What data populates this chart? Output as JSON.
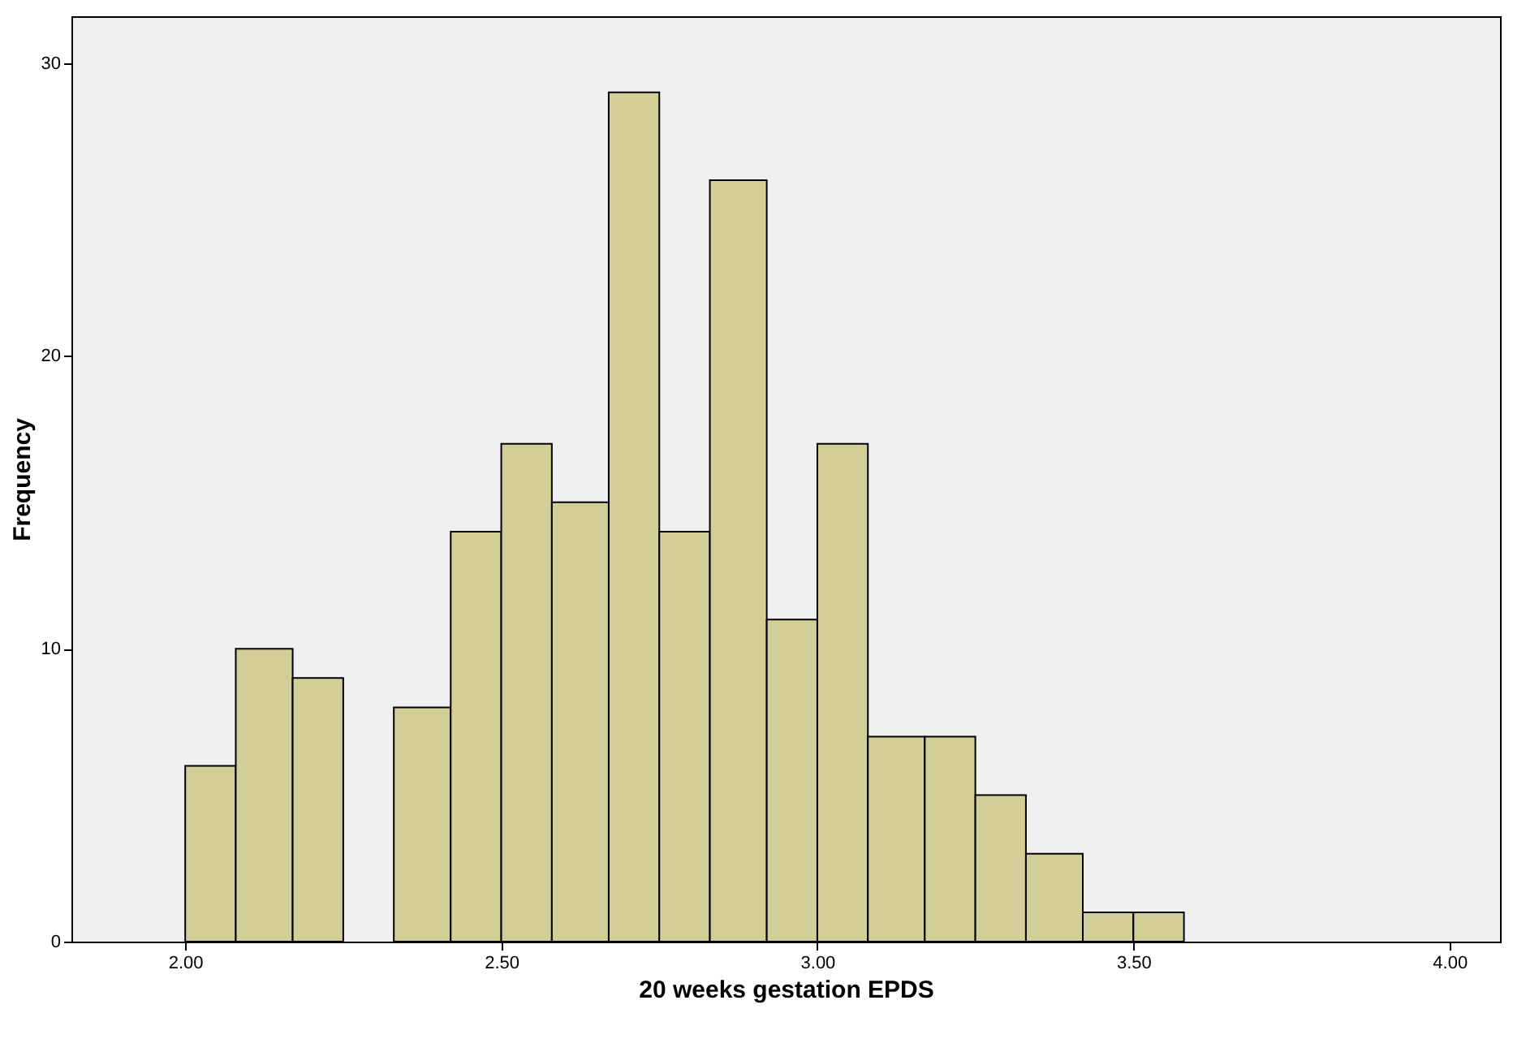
{
  "chart_data": {
    "type": "histogram",
    "xlabel": "20 weeks gestation EPDS",
    "ylabel": "Frequency",
    "bins": [
      2.0,
      2.08,
      2.17,
      2.25,
      2.33,
      2.42,
      2.5,
      2.58,
      2.67,
      2.75,
      2.83,
      2.92,
      3.0,
      3.08,
      3.17,
      3.25,
      3.33,
      3.42,
      3.5,
      3.58
    ],
    "values": [
      6,
      10,
      9,
      0,
      8,
      14,
      17,
      15,
      29,
      14,
      26,
      11,
      17,
      7,
      7,
      5,
      3,
      1,
      1
    ],
    "color": "#d3ce97",
    "xlim": [
      1.82,
      4.08
    ],
    "ylim": [
      0,
      31.6
    ],
    "xticks": [
      {
        "value": 2.0,
        "label": "2.00"
      },
      {
        "value": 2.5,
        "label": "2.50"
      },
      {
        "value": 3.0,
        "label": "3.00"
      },
      {
        "value": 3.5,
        "label": "3.50"
      },
      {
        "value": 4.0,
        "label": "4.00"
      }
    ],
    "yticks": [
      0,
      10,
      20,
      30
    ],
    "grid": false
  }
}
